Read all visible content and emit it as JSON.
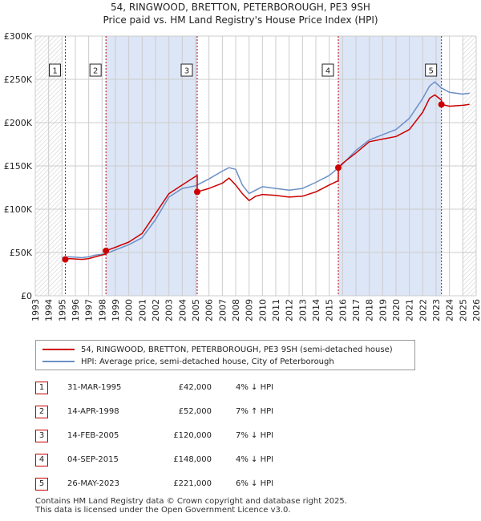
{
  "title_line1": "54, RINGWOOD, BRETTON, PETERBOROUGH, PE3 9SH",
  "title_line2": "Price paid vs. HM Land Registry's House Price Index (HPI)",
  "colors": {
    "property": "#cc0000",
    "hpi": "#6b8fc7",
    "shade": "#dde6f6",
    "grid": "#cccccc"
  },
  "chart_data": {
    "type": "line",
    "x_range": [
      1993,
      2026
    ],
    "ylim": [
      0,
      300000
    ],
    "y_ticks": [
      0,
      50000,
      100000,
      150000,
      200000,
      250000,
      300000
    ],
    "y_tick_labels": [
      "£0",
      "£50K",
      "£100K",
      "£150K",
      "£200K",
      "£250K",
      "£300K"
    ],
    "x_ticks": [
      1993,
      1994,
      1995,
      1996,
      1997,
      1998,
      1999,
      2000,
      2001,
      2002,
      2003,
      2004,
      2005,
      2006,
      2007,
      2008,
      2009,
      2010,
      2011,
      2012,
      2013,
      2014,
      2015,
      2016,
      2017,
      2018,
      2019,
      2020,
      2021,
      2022,
      2023,
      2024,
      2025,
      2026
    ],
    "shaded_ranges": [
      [
        1998.29,
        2005.12
      ],
      [
        2015.68,
        2023.4
      ]
    ],
    "hatched_ranges": [
      [
        1993,
        1995.0
      ],
      [
        2025.0,
        2026
      ]
    ],
    "series": [
      {
        "name": "54, RINGWOOD, BRETTON, PETERBOROUGH, PE3 9SH (semi-detached house)",
        "x": [
          1995.25,
          1995.6,
          1996.0,
          1996.5,
          1997.0,
          1997.5,
          1998.0,
          1998.29,
          1998.29,
          1999.0,
          2000.0,
          2001.0,
          2002.0,
          2003.0,
          2004.0,
          2004.5,
          2005.0,
          2005.12,
          2005.12,
          2006.0,
          2007.0,
          2007.5,
          2008.0,
          2008.5,
          2009.0,
          2009.5,
          2010.0,
          2011.0,
          2012.0,
          2013.0,
          2014.0,
          2015.0,
          2015.68,
          2015.68,
          2016.0,
          2017.0,
          2018.0,
          2019.0,
          2020.0,
          2021.0,
          2022.0,
          2022.5,
          2022.9,
          2023.4,
          2023.4,
          2024.0,
          2025.0,
          2025.5
        ],
        "values": [
          42000,
          43000,
          42500,
          42000,
          43000,
          45000,
          47000,
          48000,
          52000,
          56000,
          62000,
          72000,
          95000,
          118000,
          128000,
          133000,
          138000,
          139000,
          120000,
          124000,
          130000,
          136000,
          128000,
          118000,
          110000,
          115000,
          117000,
          116000,
          114000,
          115000,
          120000,
          128000,
          133000,
          148000,
          153000,
          165000,
          178000,
          181000,
          184000,
          192000,
          212000,
          228000,
          232000,
          226000,
          221000,
          219000,
          220000,
          221000
        ]
      },
      {
        "name": "HPI: Average price, semi-detached house, City of Peterborough",
        "x": [
          1995.0,
          1995.5,
          1996.0,
          1996.5,
          1997.0,
          1997.5,
          1998.0,
          1998.5,
          1999.0,
          2000.0,
          2001.0,
          2002.0,
          2003.0,
          2004.0,
          2005.0,
          2006.0,
          2007.0,
          2007.5,
          2008.0,
          2008.5,
          2009.0,
          2009.5,
          2010.0,
          2011.0,
          2012.0,
          2013.0,
          2014.0,
          2015.0,
          2016.0,
          2017.0,
          2018.0,
          2019.0,
          2020.0,
          2021.0,
          2022.0,
          2022.5,
          2022.9,
          2023.4,
          2024.0,
          2025.0,
          2025.5
        ],
        "values": [
          44000,
          45000,
          44500,
          44000,
          45000,
          47000,
          48000,
          50000,
          53000,
          59000,
          67000,
          88000,
          114000,
          124000,
          127000,
          135000,
          144000,
          148000,
          146000,
          128000,
          118000,
          122000,
          126000,
          124000,
          122000,
          124000,
          131000,
          139000,
          152000,
          168000,
          180000,
          186000,
          192000,
          205000,
          228000,
          242000,
          247000,
          240000,
          235000,
          233000,
          234000
        ]
      }
    ],
    "sale_markers": [
      {
        "label": "1",
        "x": 1995.25,
        "value": 42000
      },
      {
        "label": "2",
        "x": 1998.29,
        "value": 52000
      },
      {
        "label": "3",
        "x": 2005.12,
        "value": 120000
      },
      {
        "label": "4",
        "x": 2015.68,
        "value": 148000
      },
      {
        "label": "5",
        "x": 2023.4,
        "value": 221000
      }
    ]
  },
  "legend": {
    "property": "54, RINGWOOD, BRETTON, PETERBOROUGH, PE3 9SH (semi-detached house)",
    "hpi": "HPI: Average price, semi-detached house, City of Peterborough"
  },
  "sales": [
    {
      "num": "1",
      "date": "31-MAR-1995",
      "price": "£42,000",
      "hpi": "4% ↓ HPI"
    },
    {
      "num": "2",
      "date": "14-APR-1998",
      "price": "£52,000",
      "hpi": "7% ↑ HPI"
    },
    {
      "num": "3",
      "date": "14-FEB-2005",
      "price": "£120,000",
      "hpi": "7% ↓ HPI"
    },
    {
      "num": "4",
      "date": "04-SEP-2015",
      "price": "£148,000",
      "hpi": "4% ↓ HPI"
    },
    {
      "num": "5",
      "date": "26-MAY-2023",
      "price": "£221,000",
      "hpi": "6% ↓ HPI"
    }
  ],
  "footer_line1": "Contains HM Land Registry data © Crown copyright and database right 2025.",
  "footer_line2": "This data is licensed under the Open Government Licence v3.0."
}
